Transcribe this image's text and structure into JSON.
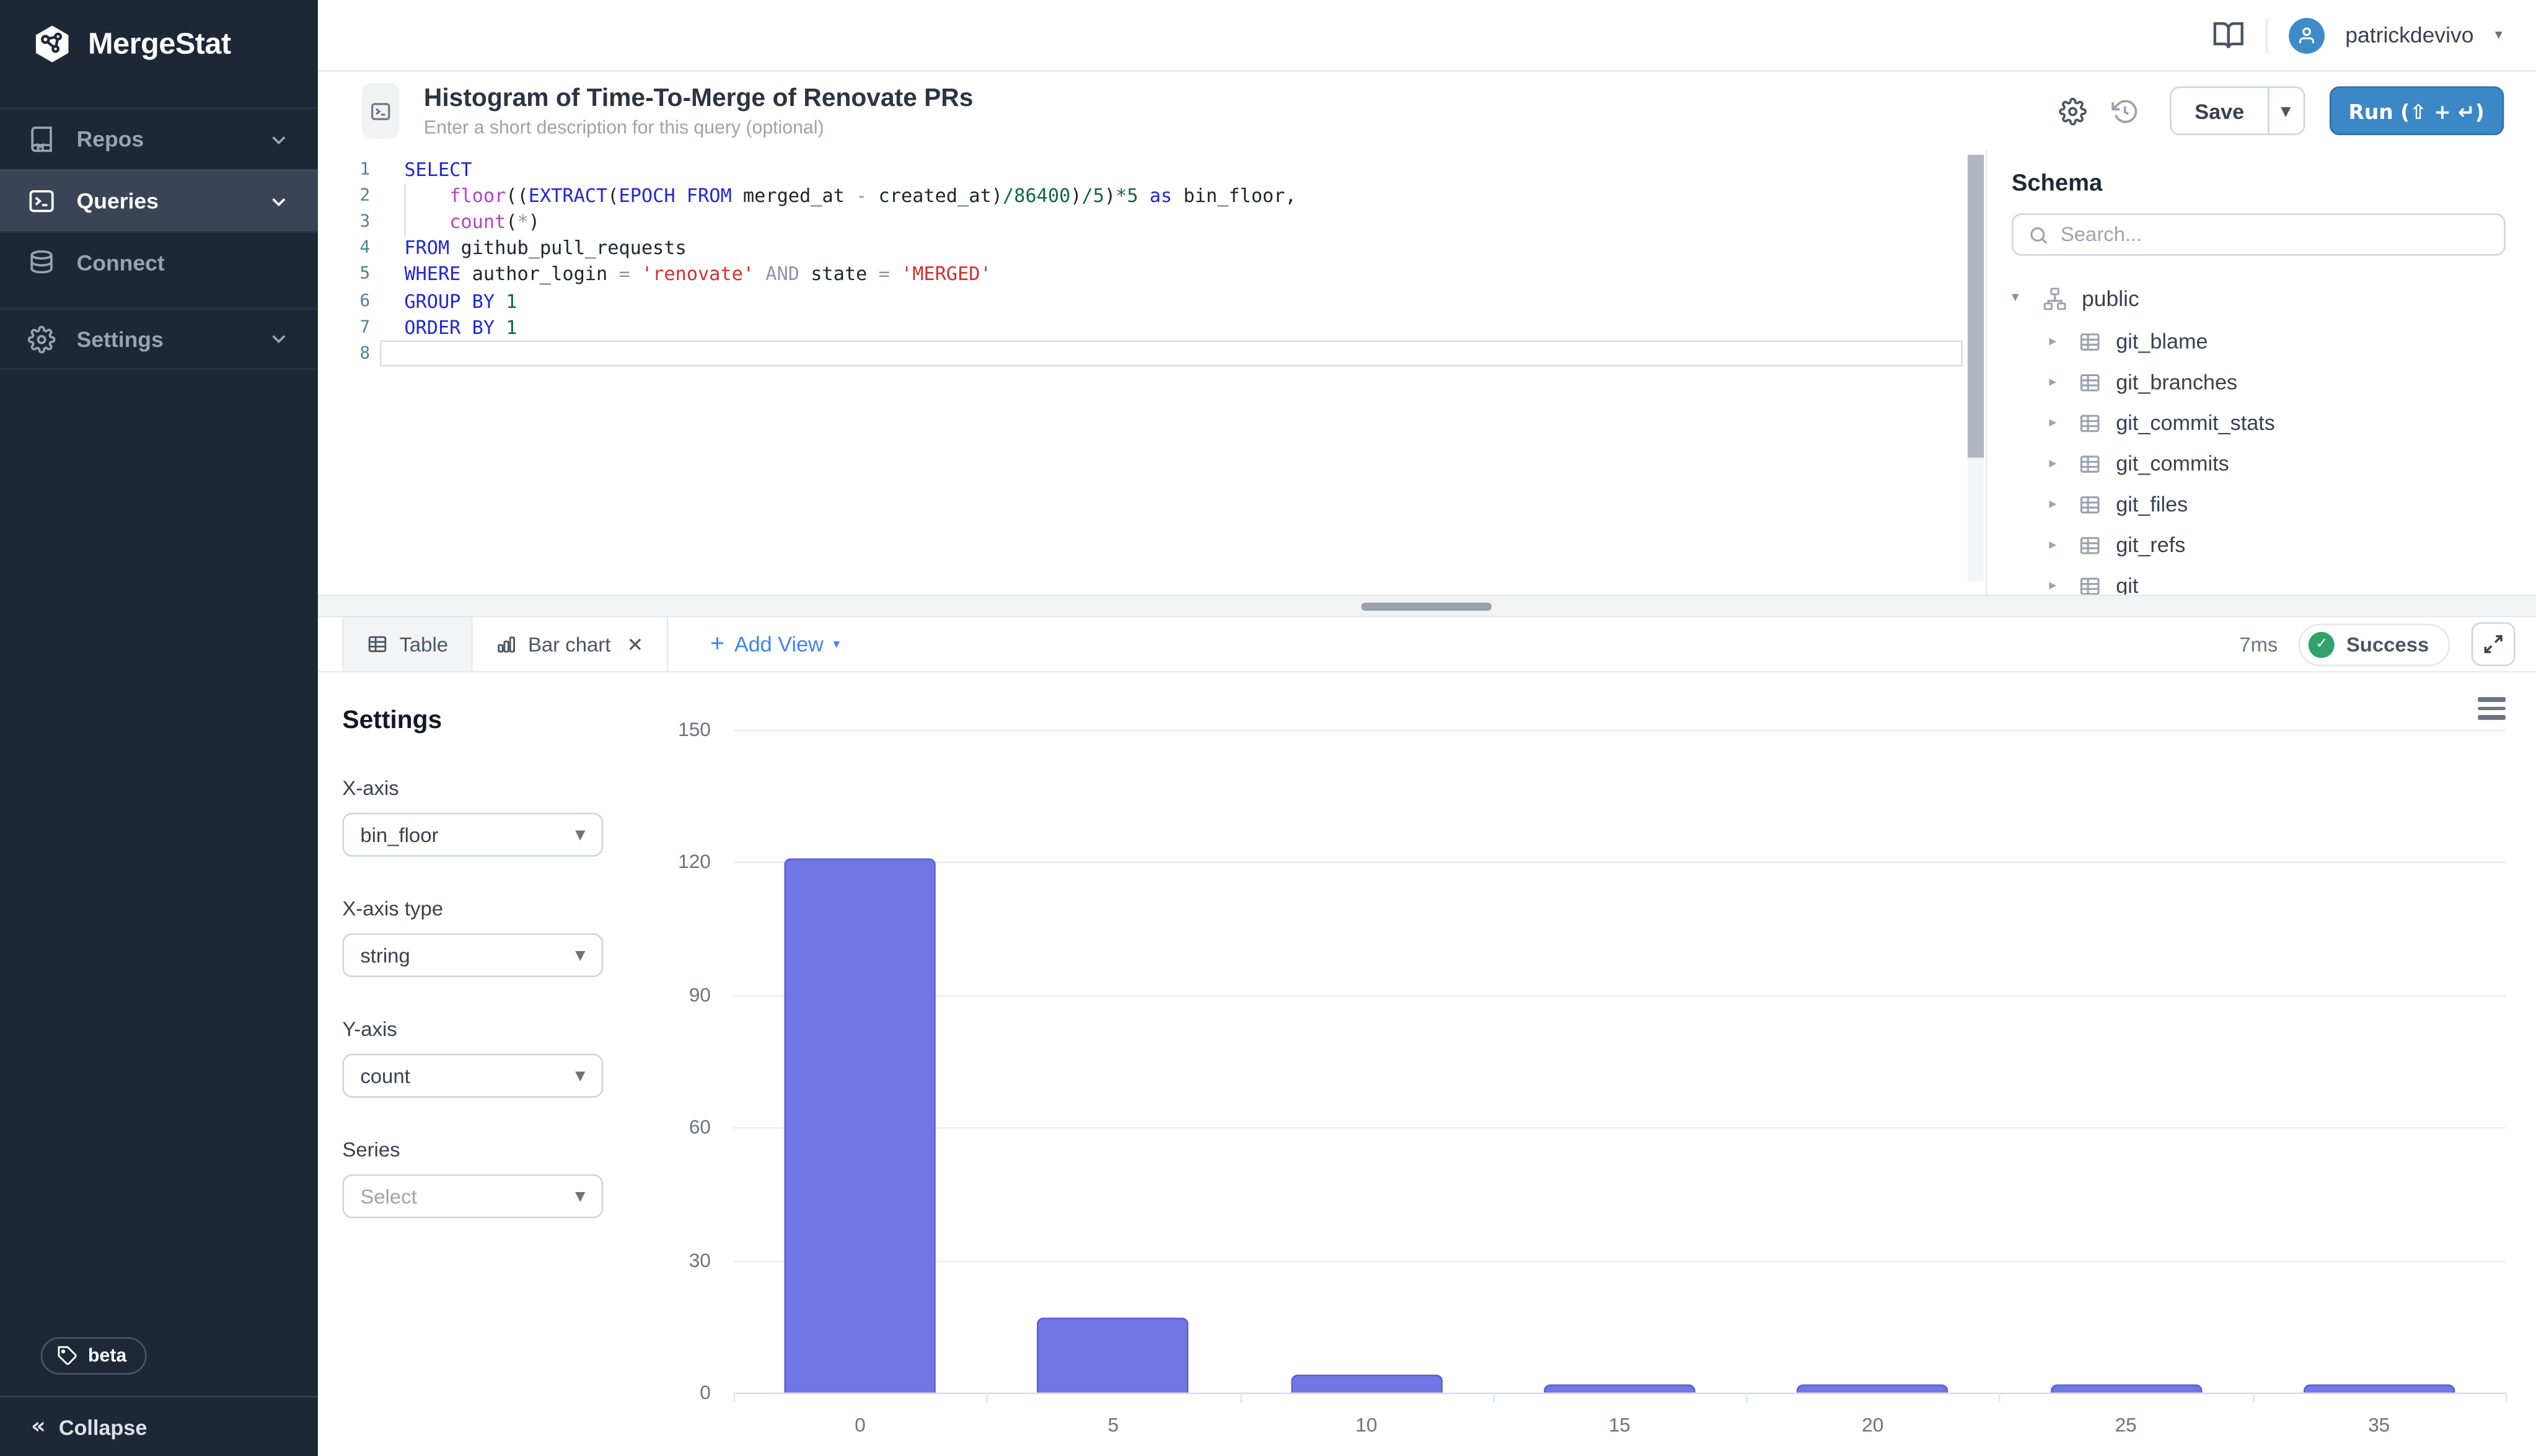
{
  "sidebar": {
    "logo": "MergeStat",
    "items": [
      {
        "label": "Repos",
        "icon": "repo-book-icon",
        "chevron": true,
        "active": false
      },
      {
        "label": "Queries",
        "icon": "terminal-icon",
        "chevron": true,
        "active": true
      },
      {
        "label": "Connect",
        "icon": "database-icon",
        "chevron": false,
        "active": false
      },
      {
        "label": "Settings",
        "icon": "gear-icon",
        "chevron": true,
        "active": false,
        "gap_above": true
      }
    ],
    "beta_label": "beta",
    "collapse_label": "Collapse"
  },
  "topbar": {
    "username": "patrickdevivo"
  },
  "query": {
    "title": "Histogram of Time-To-Merge of Renovate PRs",
    "description_placeholder": "Enter a short description for this query (optional)",
    "save_label": "Save",
    "run_label": "Run (⇧ + ↵)"
  },
  "editor": {
    "lines": [
      {
        "n": 1,
        "tokens": [
          [
            "kw",
            "SELECT"
          ]
        ]
      },
      {
        "n": 2,
        "tokens": [
          [
            "ws",
            "    "
          ],
          [
            "fn",
            "floor"
          ],
          [
            "p",
            "(("
          ],
          [
            "kw",
            "EXTRACT"
          ],
          [
            "p",
            "("
          ],
          [
            "kw",
            "EPOCH"
          ],
          [
            "ws",
            " "
          ],
          [
            "kw",
            "FROM"
          ],
          [
            "ws",
            " "
          ],
          [
            "v",
            "merged_at"
          ],
          [
            "op",
            " - "
          ],
          [
            "v",
            "created_at"
          ],
          [
            "p",
            ")"
          ],
          [
            "num",
            "/86400"
          ],
          [
            "p",
            ")"
          ],
          [
            "num",
            "/5"
          ],
          [
            "p",
            ")"
          ],
          [
            "num",
            "*5"
          ],
          [
            "ws",
            " "
          ],
          [
            "kw",
            "as"
          ],
          [
            "ws",
            " "
          ],
          [
            "v",
            "bin_floor"
          ],
          [
            "p",
            ","
          ]
        ]
      },
      {
        "n": 3,
        "tokens": [
          [
            "ws",
            "    "
          ],
          [
            "fn",
            "count"
          ],
          [
            "p",
            "("
          ],
          [
            "op",
            "*"
          ],
          [
            "p",
            ")"
          ]
        ]
      },
      {
        "n": 4,
        "tokens": [
          [
            "kw",
            "FROM"
          ],
          [
            "ws",
            " "
          ],
          [
            "v",
            "github_pull_requests"
          ]
        ]
      },
      {
        "n": 5,
        "tokens": [
          [
            "kw",
            "WHERE"
          ],
          [
            "ws",
            " "
          ],
          [
            "v",
            "author_login"
          ],
          [
            "op",
            " = "
          ],
          [
            "str",
            "'renovate'"
          ],
          [
            "ws",
            " "
          ],
          [
            "op",
            "AND"
          ],
          [
            "ws",
            " "
          ],
          [
            "v",
            "state"
          ],
          [
            "op",
            " = "
          ],
          [
            "str",
            "'MERGED'"
          ]
        ]
      },
      {
        "n": 6,
        "tokens": [
          [
            "kw",
            "GROUP BY"
          ],
          [
            "ws",
            " "
          ],
          [
            "num",
            "1"
          ]
        ]
      },
      {
        "n": 7,
        "tokens": [
          [
            "kw",
            "ORDER BY"
          ],
          [
            "ws",
            " "
          ],
          [
            "num",
            "1"
          ]
        ]
      },
      {
        "n": 8,
        "tokens": [],
        "active": true
      }
    ]
  },
  "schema": {
    "heading": "Schema",
    "search_placeholder": "Search...",
    "root": "public",
    "tables": [
      "git_blame",
      "git_branches",
      "git_commit_stats",
      "git_commits",
      "git_files",
      "git_refs"
    ],
    "partial_table": "git_"
  },
  "results": {
    "tabs": [
      {
        "label": "Table",
        "icon": "table-icon",
        "active": false,
        "closable": false
      },
      {
        "label": "Bar chart",
        "icon": "bar-chart-icon",
        "active": true,
        "closable": true
      }
    ],
    "add_view_label": "Add View",
    "duration": "7ms",
    "status": "Success"
  },
  "settings_panel": {
    "heading": "Settings",
    "fields": [
      {
        "label": "X-axis",
        "value": "bin_floor",
        "muted": false
      },
      {
        "label": "X-axis type",
        "value": "string",
        "muted": false
      },
      {
        "label": "Y-axis",
        "value": "count",
        "muted": false
      },
      {
        "label": "Series",
        "value": "Select",
        "muted": true
      }
    ]
  },
  "chart_data": {
    "type": "bar",
    "title": "",
    "xlabel": "bin_floor",
    "ylabel": "count",
    "categories": [
      "0",
      "5",
      "10",
      "15",
      "20",
      "25",
      "35"
    ],
    "values": [
      121,
      17,
      4,
      2,
      2,
      2,
      2
    ],
    "ylim": [
      0,
      150
    ],
    "yticks": [
      0,
      30,
      60,
      90,
      120,
      150
    ],
    "grid": true,
    "legend_position": "none",
    "bar_color": "#7276e4",
    "bar_border_color": "#5a5ed8"
  },
  "colors": {
    "sidebar_bg": "#1e2735",
    "accent_blue": "#3c87c6",
    "link_blue": "#3f83f8",
    "success_green": "#2fa36b",
    "bar_purple": "#7276e4"
  }
}
